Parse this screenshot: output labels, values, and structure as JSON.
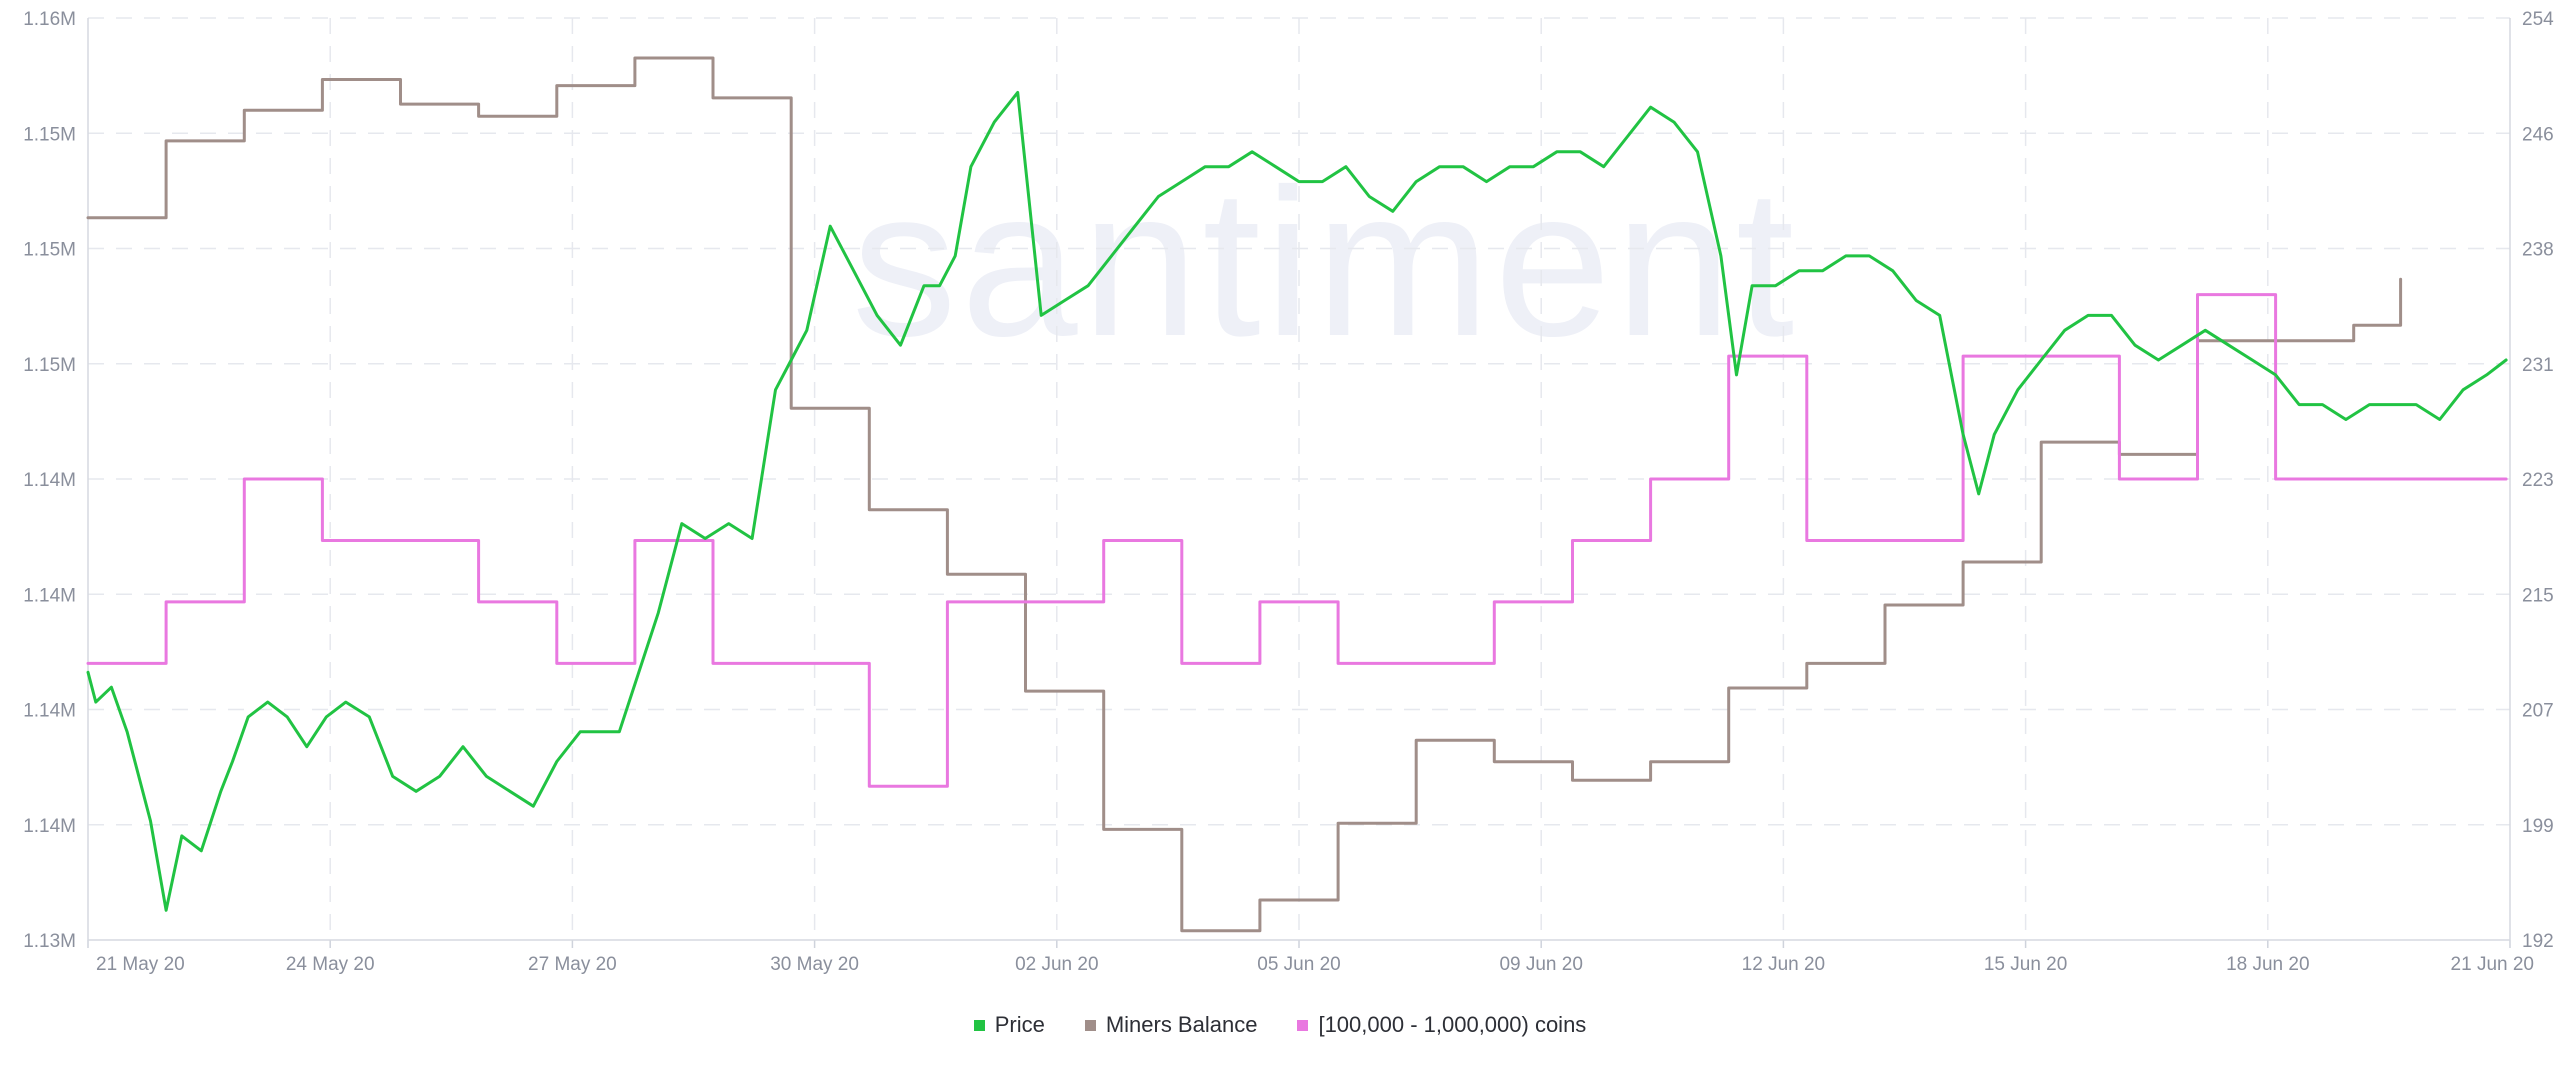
{
  "chart_data": {
    "type": "line",
    "watermark": "santiment",
    "grid": true,
    "legend_placement": "bottom-center",
    "x_ticks": [
      "21 May 20",
      "24 May 20",
      "27 May 20",
      "30 May 20",
      "02 Jun 20",
      "05 Jun 20",
      "09 Jun 20",
      "12 Jun 20",
      "15 Jun 20",
      "18 Jun 20",
      "21 Jun 20"
    ],
    "y_left_ticks": [
      "1.13M",
      "1.14M",
      "1.14M",
      "1.14M",
      "1.14M",
      "1.15M",
      "1.15M",
      "1.15M",
      "1.16M"
    ],
    "y_left_range": [
      1.13,
      1.16
    ],
    "y_right_ticks": [
      "192",
      "199",
      "207",
      "215",
      "223",
      "231",
      "238",
      "246",
      "254"
    ],
    "y_right_range": [
      192,
      254
    ],
    "x_range": [
      0,
      31
    ],
    "series": [
      {
        "name": "Price",
        "color": "#21c343",
        "axis": "right",
        "style": "line",
        "x": [
          0.0,
          0.1,
          0.3,
          0.5,
          0.8,
          1.0,
          1.2,
          1.45,
          1.7,
          1.85,
          2.05,
          2.3,
          2.55,
          2.8,
          3.05,
          3.3,
          3.6,
          3.9,
          4.2,
          4.5,
          4.8,
          5.1,
          5.4,
          5.7,
          6.0,
          6.3,
          6.55,
          6.8,
          7.05,
          7.3,
          7.6,
          7.9,
          8.2,
          8.5,
          8.8,
          9.0,
          9.2,
          9.5,
          9.8,
          10.1,
          10.4,
          10.7,
          10.9,
          11.1,
          11.3,
          11.6,
          11.9,
          12.2,
          12.5,
          12.8,
          13.1,
          13.4,
          13.7,
          14.0,
          14.3,
          14.6,
          14.9,
          15.2,
          15.5,
          15.8,
          16.1,
          16.4,
          16.7,
          17.0,
          17.3,
          17.6,
          17.9,
          18.2,
          18.5,
          18.8,
          19.1,
          19.4,
          19.7,
          20.0,
          20.3,
          20.6,
          20.9,
          21.1,
          21.3,
          21.6,
          21.9,
          22.2,
          22.5,
          22.8,
          23.1,
          23.4,
          23.7,
          24.0,
          24.2,
          24.4,
          24.7,
          25.0,
          25.3,
          25.6,
          25.9,
          26.2,
          26.5,
          26.8,
          27.1,
          27.4,
          27.7,
          28.0,
          28.3,
          28.6,
          28.9,
          29.2,
          29.5,
          29.8,
          30.1,
          30.4,
          30.7,
          30.95
        ],
        "values": [
          210,
          208,
          209,
          206,
          200,
          194,
          199,
          198,
          202,
          204,
          207,
          208,
          207,
          205,
          207,
          208,
          207,
          203,
          202,
          203,
          205,
          203,
          202,
          201,
          204,
          206,
          206,
          206,
          210,
          214,
          220,
          219,
          220,
          219,
          229,
          231,
          233,
          240,
          237,
          234,
          232,
          236,
          236,
          238,
          244,
          247,
          249,
          234,
          235,
          236,
          238,
          240,
          242,
          243,
          244,
          244,
          245,
          244,
          243,
          243,
          244,
          242,
          241,
          243,
          244,
          244,
          243,
          244,
          244,
          245,
          245,
          244,
          246,
          248,
          247,
          245,
          238,
          230,
          236,
          236,
          237,
          237,
          238,
          238,
          237,
          235,
          234,
          226,
          222,
          226,
          229,
          231,
          233,
          234,
          234,
          232,
          231,
          232,
          233,
          232,
          231,
          230,
          228,
          228,
          227,
          228,
          228,
          228,
          227,
          229,
          230,
          231
        ]
      },
      {
        "name": "Miners Balance",
        "color": "#a08e89",
        "axis": "left",
        "style": "step",
        "x": [
          0.0,
          1.0,
          2.0,
          3.0,
          4.0,
          5.0,
          6.0,
          7.0,
          8.0,
          9.0,
          10.0,
          11.0,
          12.0,
          13.0,
          14.0,
          15.0,
          16.0,
          17.0,
          18.0,
          19.0,
          20.0,
          21.0,
          22.0,
          23.0,
          24.0,
          25.0,
          26.0,
          27.0,
          28.0,
          29.0,
          29.6
        ],
        "values": [
          1.1535,
          1.156,
          1.157,
          1.158,
          1.1572,
          1.1568,
          1.1578,
          1.1587,
          1.1574,
          1.1473,
          1.144,
          1.1419,
          1.1381,
          1.1336,
          1.1303,
          1.1313,
          1.1338,
          1.1365,
          1.1358,
          1.1352,
          1.1358,
          1.1382,
          1.139,
          1.1409,
          1.1423,
          1.1462,
          1.1458,
          1.1495,
          1.1495,
          1.15,
          1.1515
        ]
      },
      {
        "name": "[100,000  - 1,000,000) coins",
        "color": "#e978e0",
        "axis": "left",
        "style": "step",
        "x": [
          0.0,
          1.0,
          2.0,
          3.0,
          4.0,
          5.0,
          6.0,
          7.0,
          8.0,
          9.0,
          10.0,
          11.0,
          12.0,
          13.0,
          14.0,
          15.0,
          16.0,
          17.0,
          18.0,
          19.0,
          20.0,
          21.0,
          22.0,
          23.0,
          24.0,
          25.0,
          26.0,
          27.0,
          28.0,
          29.0,
          30.0,
          30.95
        ],
        "values": [
          1.139,
          1.141,
          1.145,
          1.143,
          1.143,
          1.141,
          1.139,
          1.143,
          1.139,
          1.139,
          1.135,
          1.141,
          1.141,
          1.143,
          1.139,
          1.141,
          1.139,
          1.139,
          1.141,
          1.143,
          1.145,
          1.149,
          1.143,
          1.143,
          1.149,
          1.149,
          1.145,
          1.151,
          1.145,
          1.145,
          1.145,
          1.145
        ]
      }
    ]
  }
}
